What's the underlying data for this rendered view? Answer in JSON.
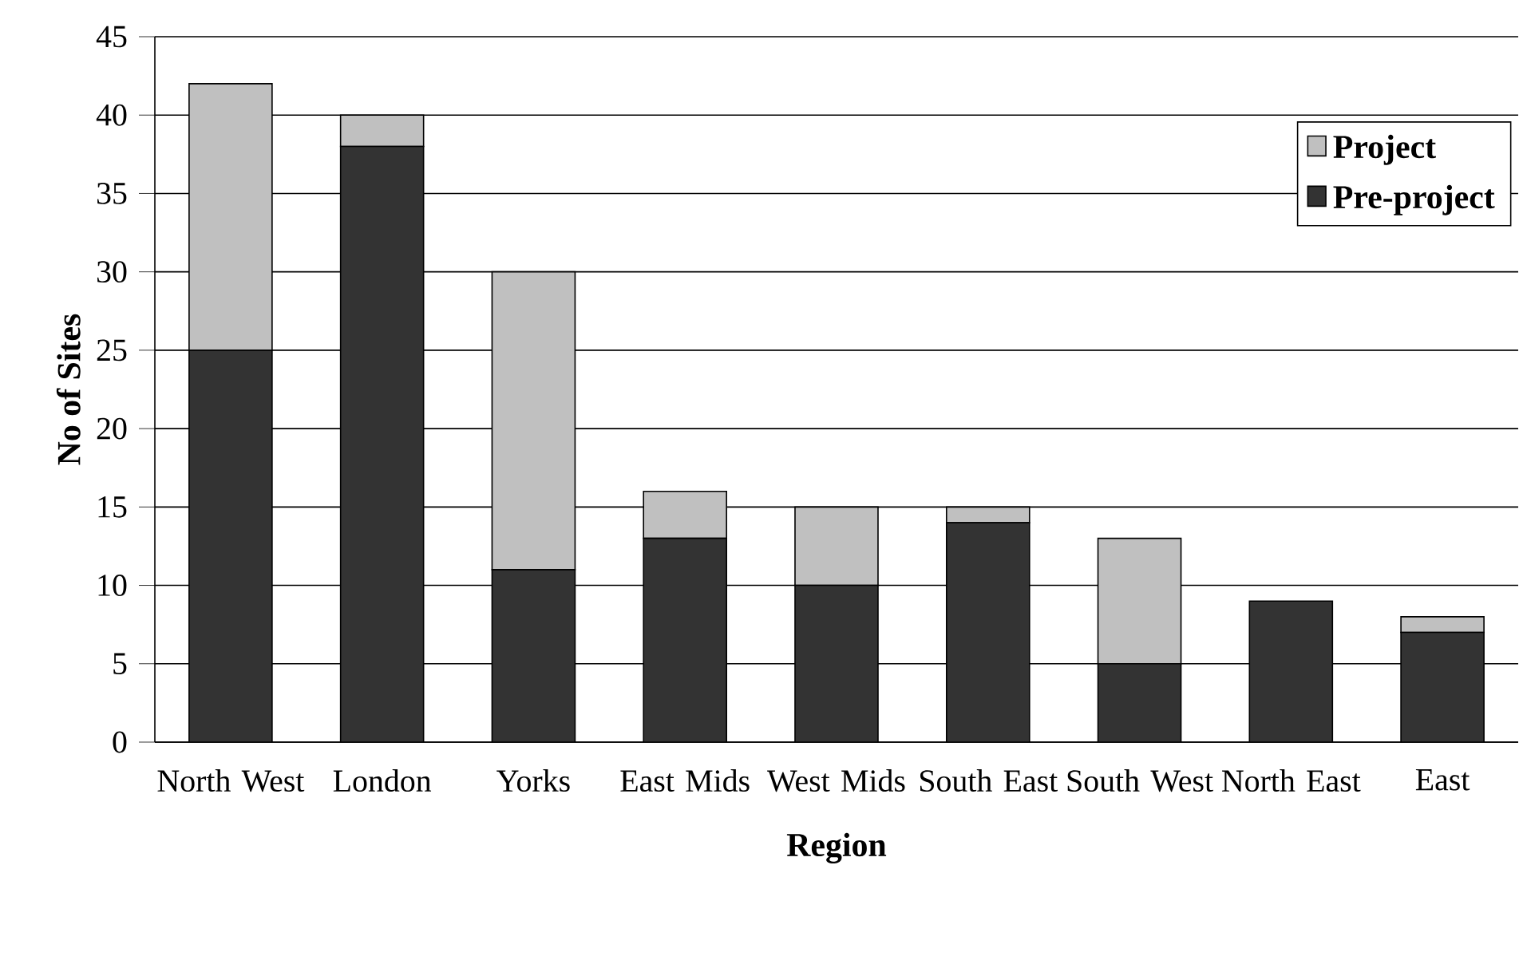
{
  "chart_data": {
    "type": "bar",
    "stacked": true,
    "xlabel": "Region",
    "ylabel": "No of Sites",
    "categories": [
      "North West",
      "London",
      "Yorks",
      "East Mids",
      "West Mids",
      "South East",
      "South West",
      "North East",
      "East"
    ],
    "series": [
      {
        "name": "Pre-project",
        "color": "#333333",
        "values": [
          25,
          38,
          11,
          13,
          10,
          14,
          5,
          9,
          7
        ]
      },
      {
        "name": "Project",
        "color": "#c0c0c0",
        "values": [
          17,
          2,
          19,
          3,
          5,
          1,
          8,
          0,
          1
        ]
      }
    ],
    "ylim": [
      0,
      45
    ],
    "yticks": [
      0,
      5,
      10,
      15,
      20,
      25,
      30,
      35,
      40,
      45
    ],
    "grid": "y",
    "legend": "top right"
  }
}
